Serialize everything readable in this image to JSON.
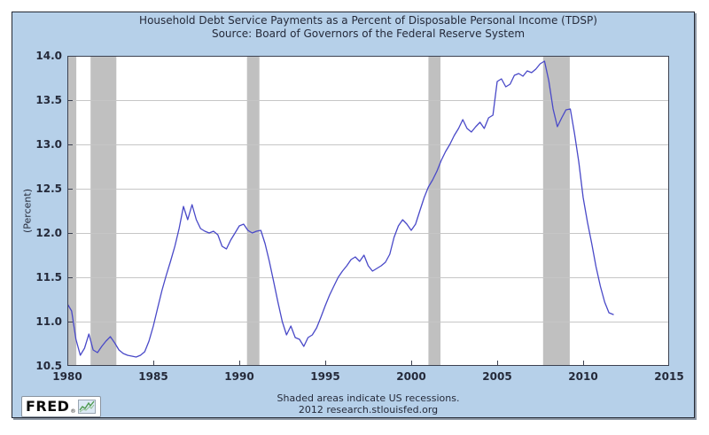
{
  "header": {
    "title": "Household Debt Service Payments as a Percent of Disposable Personal Income (TDSP)",
    "subtitle": "Source: Board of Governors of the Federal Reserve System"
  },
  "footer": {
    "line1": "Shaded areas indicate US recessions.",
    "line2": "2012 research.stlouisfed.org"
  },
  "logo": {
    "text": "FRED",
    "registered_mark": "®",
    "icon": "line-chart-icon"
  },
  "y_axis": {
    "label": "(Percent)",
    "ticks": [
      "14.0",
      "13.5",
      "13.0",
      "12.5",
      "12.0",
      "11.5",
      "11.0",
      "10.5"
    ]
  },
  "x_axis": {
    "ticks": [
      "1980",
      "1985",
      "1990",
      "1995",
      "2000",
      "2005",
      "2010",
      "2015"
    ]
  },
  "colors": {
    "canvas": "#b6d0e9",
    "plot_background": "#ffffff",
    "grid": "#c6c6c6",
    "recession": "#c0c0c0",
    "frame": "#3c4150",
    "line": "#4949c8",
    "text": "#252a3a",
    "logo_green": "#4e9a4e",
    "logo_icon_bg": "#dce9f5"
  },
  "chart_data": {
    "type": "line",
    "title": "Household Debt Service Payments as a Percent of Disposable Personal Income (TDSP)",
    "subtitle": "Source: Board of Governors of the Federal Reserve System",
    "series_name": "TDSP",
    "xlabel": "",
    "ylabel": "(Percent)",
    "xlim": [
      1980,
      2015
    ],
    "ylim": [
      10.5,
      14.0
    ],
    "grid": true,
    "legend": "none",
    "x_start": 1980.0,
    "x_step": 0.25,
    "x_unit": "year (quarterly data)",
    "values": [
      11.2,
      11.12,
      10.8,
      10.62,
      10.7,
      10.86,
      10.68,
      10.65,
      10.72,
      10.78,
      10.83,
      10.76,
      10.68,
      10.64,
      10.62,
      10.61,
      10.6,
      10.62,
      10.66,
      10.78,
      10.95,
      11.15,
      11.35,
      11.52,
      11.68,
      11.85,
      12.05,
      12.3,
      12.15,
      12.32,
      12.15,
      12.05,
      12.02,
      12.0,
      12.02,
      11.98,
      11.85,
      11.82,
      11.92,
      12.0,
      12.08,
      12.1,
      12.03,
      12.0,
      12.02,
      12.03,
      11.88,
      11.68,
      11.45,
      11.22,
      11.0,
      10.85,
      10.95,
      10.82,
      10.8,
      10.72,
      10.82,
      10.85,
      10.93,
      11.05,
      11.18,
      11.3,
      11.4,
      11.5,
      11.57,
      11.63,
      11.7,
      11.73,
      11.68,
      11.75,
      11.63,
      11.57,
      11.6,
      11.63,
      11.67,
      11.76,
      11.95,
      12.08,
      12.15,
      12.1,
      12.03,
      12.1,
      12.25,
      12.4,
      12.52,
      12.6,
      12.7,
      12.82,
      12.92,
      13.0,
      13.1,
      13.18,
      13.28,
      13.18,
      13.14,
      13.2,
      13.25,
      13.18,
      13.3,
      13.33,
      13.71,
      13.74,
      13.65,
      13.68,
      13.78,
      13.8,
      13.77,
      13.83,
      13.81,
      13.85,
      13.91,
      13.94,
      13.72,
      13.4,
      13.2,
      13.3,
      13.39,
      13.4,
      13.12,
      12.8,
      12.4,
      12.12,
      11.88,
      11.62,
      11.4,
      11.22,
      11.1,
      11.08
    ],
    "recessions": [
      [
        1980.05,
        1980.52
      ],
      [
        1981.35,
        1982.85
      ],
      [
        1990.45,
        1991.17
      ],
      [
        2001.0,
        2001.7
      ],
      [
        2007.67,
        2009.22
      ]
    ]
  }
}
